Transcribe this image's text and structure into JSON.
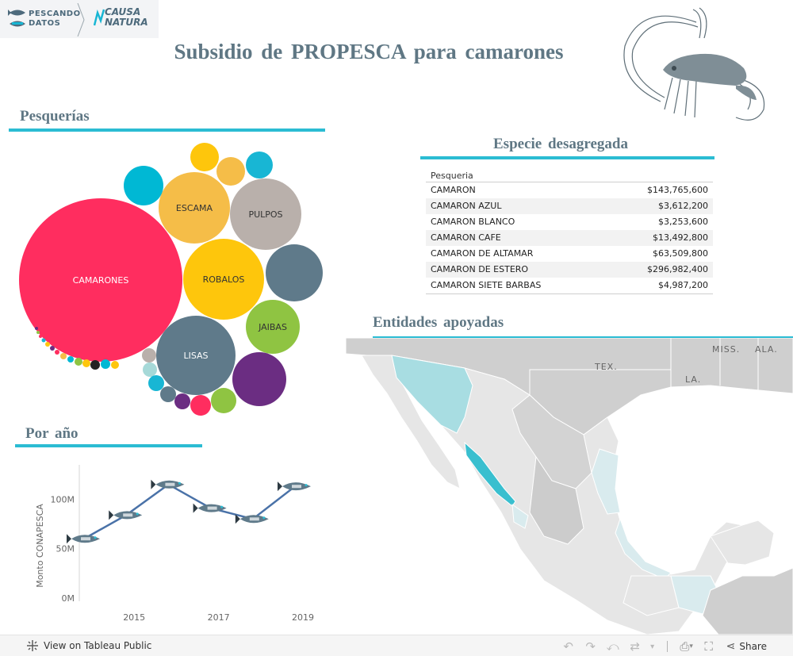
{
  "logos": {
    "pescando_line1": "PESCANDO",
    "pescando_line2": "DATOS",
    "causa_line1": "CAUSA",
    "causa_line2": "NATURA"
  },
  "title": "Subsidio de PROPESCA para camarones",
  "sections": {
    "pesquerias": "Pesquerías",
    "especie": "Especie desagregada",
    "entidades": "Entidades apoyadas",
    "por_anio": "Por año"
  },
  "bubbles": [
    {
      "label": "CAMARONES",
      "color": "#ff2d5f"
    },
    {
      "label": "ESCAMA",
      "color": "#f5bd48"
    },
    {
      "label": "PULPOS",
      "color": "#b9b0ab"
    },
    {
      "label": "ROBALOS",
      "color": "#fec60c"
    },
    {
      "label": "LISAS",
      "color": "#5f7a8a"
    },
    {
      "label": "JAIBAS",
      "color": "#8fc442"
    },
    {
      "label": "",
      "color": "#5f7a8a"
    },
    {
      "label": "",
      "color": "#6b2d82"
    },
    {
      "label": "",
      "color": "#00b8d4"
    },
    {
      "label": "",
      "color": "#fec60c"
    },
    {
      "label": "",
      "color": "#f5bd48"
    },
    {
      "label": "",
      "color": "#18b6d4"
    }
  ],
  "table": {
    "header": "Pesqueria",
    "rows": [
      {
        "name": "CAMARON",
        "value": "$143,765,600"
      },
      {
        "name": "CAMARON AZUL",
        "value": "$3,612,200"
      },
      {
        "name": "CAMARON BLANCO",
        "value": "$3,253,600"
      },
      {
        "name": "CAMARON CAFE",
        "value": "$13,492,800"
      },
      {
        "name": "CAMARON DE ALTAMAR",
        "value": "$63,509,800"
      },
      {
        "name": "CAMARON DE ESTERO",
        "value": "$296,982,400"
      },
      {
        "name": "CAMARON SIETE BARBAS",
        "value": "$4,987,200"
      }
    ]
  },
  "map": {
    "labels": [
      "MISS.",
      "ALA.",
      "TEX.",
      "LA."
    ],
    "colors": {
      "land": "#cfcfcf",
      "mexico": "#e6e6e6",
      "highlight_strong": "#39bfcf",
      "highlight_mid": "#a8dde2",
      "highlight_light": "#d9ebee",
      "water": "#ffffff"
    }
  },
  "chart_data": {
    "type": "line",
    "x": [
      2014,
      2015,
      2016,
      2017,
      2018,
      2019
    ],
    "y": [
      60,
      84,
      115,
      91,
      80,
      113
    ],
    "x_ticks": [
      "2015",
      "2017",
      "2019"
    ],
    "y_ticks": [
      "0M",
      "50M",
      "100M"
    ],
    "ylabel": "Monto CONAPESCA",
    "ylim": [
      0,
      130
    ],
    "marker": "fish-icon",
    "line_color": "#4a72a8"
  },
  "footer": {
    "view_label": "View on Tableau Public",
    "share_label": "Share"
  }
}
